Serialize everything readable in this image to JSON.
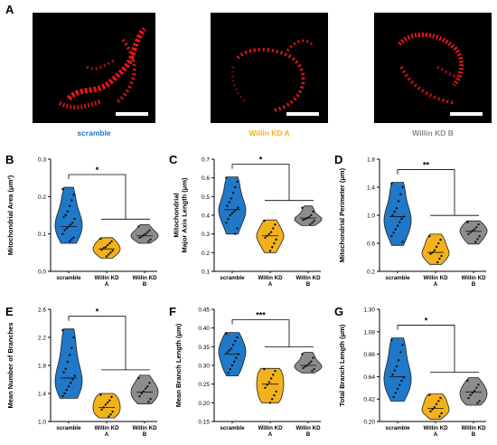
{
  "panel_a": {
    "letter": "A",
    "conditions": [
      {
        "label": "scramble",
        "color": "#1f78c8"
      },
      {
        "label": "Willin KD A",
        "color": "#f3b21b"
      },
      {
        "label": "Willin KD B",
        "color": "#8c8c8c"
      }
    ]
  },
  "chart_data": [
    {
      "letter": "B",
      "type": "violin",
      "ylabel": "Mitochondrial Area (μm²)",
      "ylim": [
        0.0,
        0.3
      ],
      "yticks": [
        "0.0",
        "0.1",
        "0.2",
        "0.3"
      ],
      "categories": [
        "scramble",
        "Willin KD\nA",
        "Willin KD\nB"
      ],
      "series": [
        {
          "color": "#1f78c8",
          "range": [
            0.075,
            0.225
          ],
          "median": 0.12,
          "points": [
            0.22,
            0.205,
            0.19,
            0.175,
            0.16,
            0.15,
            0.145,
            0.14,
            0.13,
            0.125,
            0.12,
            0.115,
            0.11,
            0.1,
            0.09,
            0.085,
            0.08
          ]
        },
        {
          "color": "#f3b21b",
          "range": [
            0.035,
            0.09
          ],
          "median": 0.06,
          "points": [
            0.087,
            0.08,
            0.075,
            0.07,
            0.065,
            0.062,
            0.058,
            0.055,
            0.05,
            0.045,
            0.04
          ]
        },
        {
          "color": "#8c8c8c",
          "range": [
            0.075,
            0.125
          ],
          "median": 0.095,
          "points": [
            0.12,
            0.11,
            0.105,
            0.1,
            0.097,
            0.093,
            0.09,
            0.085,
            0.08
          ]
        }
      ],
      "significance": "*"
    },
    {
      "letter": "C",
      "type": "violin",
      "ylabel": "Mitochondrial\nMajor Axis Length (μm)",
      "ylim": [
        0.1,
        0.7
      ],
      "yticks": [
        "0.1",
        "0.2",
        "0.3",
        "0.4",
        "0.5",
        "0.6",
        "0.7"
      ],
      "categories": [
        "scramble",
        "Willin KD\nA",
        "Willin KD\nB"
      ],
      "series": [
        {
          "color": "#1f78c8",
          "range": [
            0.3,
            0.605
          ],
          "median": 0.43,
          "points": [
            0.6,
            0.58,
            0.55,
            0.52,
            0.49,
            0.47,
            0.45,
            0.44,
            0.43,
            0.42,
            0.41,
            0.4,
            0.38,
            0.36,
            0.33,
            0.3
          ]
        },
        {
          "color": "#f3b21b",
          "range": [
            0.2,
            0.375
          ],
          "median": 0.29,
          "points": [
            0.37,
            0.35,
            0.33,
            0.31,
            0.3,
            0.29,
            0.28,
            0.27,
            0.25,
            0.23,
            0.21
          ]
        },
        {
          "color": "#8c8c8c",
          "range": [
            0.345,
            0.45
          ],
          "median": 0.385,
          "points": [
            0.44,
            0.42,
            0.4,
            0.39,
            0.385,
            0.38,
            0.375,
            0.37,
            0.36,
            0.35
          ]
        }
      ],
      "significance": "*"
    },
    {
      "letter": "D",
      "type": "violin",
      "ylabel": "Mitochondrial Perimeter (μm)",
      "ylim": [
        0.2,
        1.8
      ],
      "yticks": [
        "0.2",
        "0.6",
        "1.0",
        "1.4",
        "1.8"
      ],
      "categories": [
        "scramble",
        "Willin KD\nA",
        "Willin KD\nB"
      ],
      "series": [
        {
          "color": "#1f78c8",
          "range": [
            0.57,
            1.47
          ],
          "median": 0.98,
          "points": [
            1.45,
            1.4,
            1.3,
            1.2,
            1.1,
            1.05,
            1.0,
            0.98,
            0.95,
            0.9,
            0.85,
            0.8,
            0.75,
            0.7,
            0.62
          ]
        },
        {
          "color": "#f3b21b",
          "range": [
            0.3,
            0.73
          ],
          "median": 0.47,
          "points": [
            0.7,
            0.65,
            0.6,
            0.55,
            0.5,
            0.47,
            0.45,
            0.42,
            0.38,
            0.33
          ]
        },
        {
          "color": "#8c8c8c",
          "range": [
            0.59,
            0.92
          ],
          "median": 0.77,
          "points": [
            0.9,
            0.87,
            0.83,
            0.8,
            0.78,
            0.76,
            0.73,
            0.7,
            0.66,
            0.62
          ]
        }
      ],
      "significance": "**"
    },
    {
      "letter": "E",
      "type": "violin",
      "ylabel": "Mean Number of Branches",
      "ylim": [
        1.0,
        2.6
      ],
      "yticks": [
        "1.0",
        "1.4",
        "1.8",
        "2.2",
        "2.6"
      ],
      "categories": [
        "scramble",
        "Willin KD\nA",
        "Willin KD\nB"
      ],
      "series": [
        {
          "color": "#1f78c8",
          "range": [
            1.33,
            2.32
          ],
          "median": 1.62,
          "points": [
            2.3,
            2.2,
            2.05,
            1.95,
            1.85,
            1.75,
            1.7,
            1.65,
            1.6,
            1.55,
            1.5,
            1.45,
            1.4,
            1.36
          ]
        },
        {
          "color": "#f3b21b",
          "range": [
            1.05,
            1.4
          ],
          "median": 1.2,
          "points": [
            1.38,
            1.35,
            1.3,
            1.27,
            1.24,
            1.2,
            1.17,
            1.14,
            1.1,
            1.07
          ]
        },
        {
          "color": "#8c8c8c",
          "range": [
            1.25,
            1.66
          ],
          "median": 1.42,
          "points": [
            1.62,
            1.55,
            1.5,
            1.47,
            1.43,
            1.4,
            1.36,
            1.32,
            1.28
          ]
        }
      ],
      "significance": "*"
    },
    {
      "letter": "F",
      "type": "violin",
      "ylabel": "Mean Branch Length (μm)",
      "ylim": [
        0.15,
        0.45
      ],
      "yticks": [
        "0.15",
        "0.20",
        "0.25",
        "0.30",
        "0.35",
        "0.40",
        "0.45"
      ],
      "categories": [
        "scramble",
        "Willin KD\nA",
        "Willin KD\nB"
      ],
      "series": [
        {
          "color": "#1f78c8",
          "range": [
            0.272,
            0.388
          ],
          "median": 0.33,
          "points": [
            0.385,
            0.375,
            0.365,
            0.355,
            0.345,
            0.34,
            0.335,
            0.33,
            0.32,
            0.31,
            0.3,
            0.29,
            0.28
          ]
        },
        {
          "color": "#f3b21b",
          "range": [
            0.2,
            0.292
          ],
          "median": 0.25,
          "points": [
            0.29,
            0.285,
            0.275,
            0.265,
            0.255,
            0.248,
            0.24,
            0.23,
            0.22,
            0.21,
            0.2
          ]
        },
        {
          "color": "#8c8c8c",
          "range": [
            0.28,
            0.335
          ],
          "median": 0.3,
          "points": [
            0.33,
            0.32,
            0.31,
            0.305,
            0.3,
            0.297,
            0.293,
            0.29,
            0.285
          ]
        }
      ],
      "significance": "***"
    },
    {
      "letter": "G",
      "type": "violin",
      "ylabel": "Total Branch Length (μm)",
      "ylim": [
        0.2,
        1.3
      ],
      "yticks": [
        "0.20",
        "0.42",
        "0.64",
        "0.86",
        "1.08",
        "1.30"
      ],
      "categories": [
        "scramble",
        "Willin KD\nA",
        "Willin KD\nB"
      ],
      "series": [
        {
          "color": "#1f78c8",
          "range": [
            0.4,
            1.02
          ],
          "median": 0.64,
          "points": [
            1.0,
            0.95,
            0.88,
            0.8,
            0.74,
            0.7,
            0.66,
            0.63,
            0.6,
            0.56,
            0.52,
            0.48,
            0.44
          ]
        },
        {
          "color": "#f3b21b",
          "range": [
            0.22,
            0.47
          ],
          "median": 0.33,
          "points": [
            0.46,
            0.43,
            0.4,
            0.37,
            0.34,
            0.32,
            0.3,
            0.28,
            0.25
          ]
        },
        {
          "color": "#8c8c8c",
          "range": [
            0.36,
            0.63
          ],
          "median": 0.49,
          "points": [
            0.6,
            0.56,
            0.53,
            0.5,
            0.48,
            0.46,
            0.43,
            0.4,
            0.38
          ]
        }
      ],
      "significance": "*"
    }
  ]
}
